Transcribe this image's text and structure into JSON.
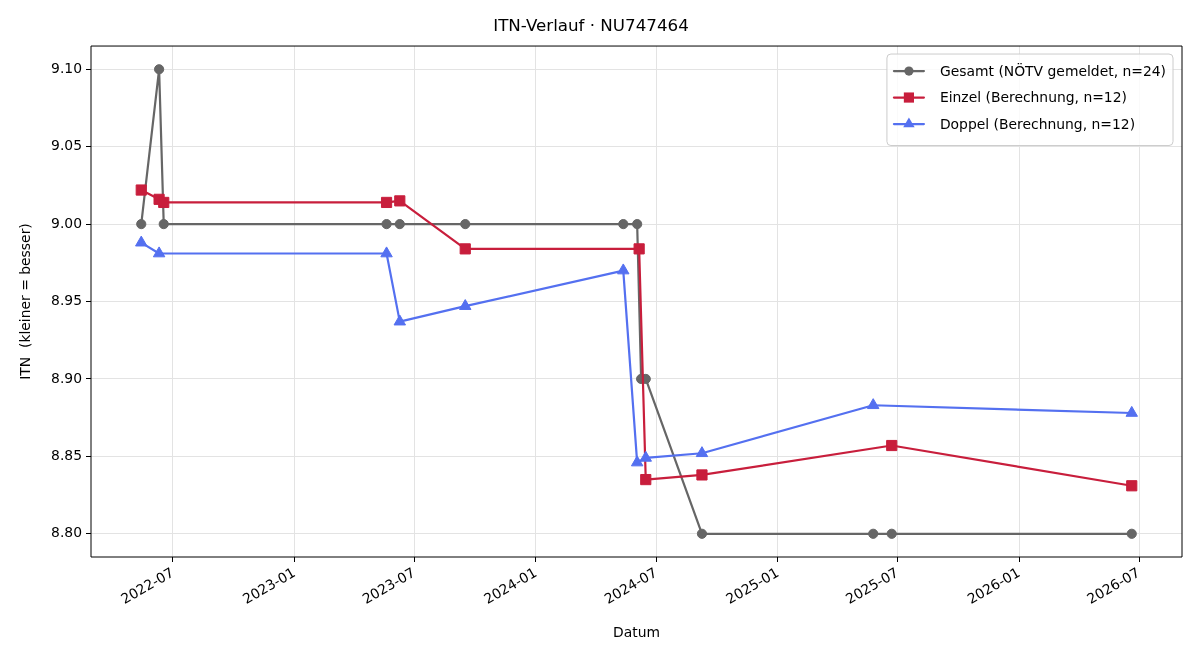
{
  "chart_data": {
    "type": "line",
    "title": "ITN-Verlauf · NU747464",
    "xlabel": "Datum",
    "ylabel": "ITN  (kleiner = besser)",
    "xlim": [
      "2022-02-27",
      "2026-09-04"
    ],
    "xticks": [
      "2022-07",
      "2023-01",
      "2023-07",
      "2024-01",
      "2024-07",
      "2025-01",
      "2025-07",
      "2026-01",
      "2026-07"
    ],
    "ylim": [
      8.785,
      9.115
    ],
    "yticks": [
      {
        "value": 8.8,
        "label": "8.80"
      },
      {
        "value": 8.85,
        "label": "8.85"
      },
      {
        "value": 8.9,
        "label": "8.90"
      },
      {
        "value": 8.95,
        "label": "8.95"
      },
      {
        "value": 9.0,
        "label": "9.00"
      },
      {
        "value": 9.05,
        "label": "9.05"
      },
      {
        "value": 9.1,
        "label": "9.10"
      }
    ],
    "grid": true,
    "legend": "top right",
    "series": [
      {
        "name": "Gesamt (NÖTV gemeldet, n=24)",
        "color": "#666666",
        "marker": "circle",
        "x": [
          "2022-05-14",
          "2022-06-10",
          "2022-06-17",
          "2023-05-20",
          "2023-06-09",
          "2023-09-16",
          "2024-05-12",
          "2024-06-02",
          "2024-06-08",
          "2024-06-15",
          "2024-09-08",
          "2025-05-25",
          "2025-06-22",
          "2026-06-20"
        ],
        "values": [
          9.0,
          9.1,
          9.0,
          9.0,
          9.0,
          9.0,
          9.0,
          9.0,
          8.9,
          8.9,
          8.8,
          8.8,
          8.8,
          8.8
        ]
      },
      {
        "name": "Einzel (Berechnung, n=12)",
        "color": "#c81e3c",
        "marker": "square",
        "x": [
          "2022-05-14",
          "2022-06-10",
          "2022-06-17",
          "2023-05-20",
          "2023-06-09",
          "2023-09-16",
          "2024-06-05",
          "2024-06-15",
          "2024-09-08",
          "2025-06-22",
          "2026-06-20"
        ],
        "values": [
          9.022,
          9.016,
          9.014,
          9.014,
          9.015,
          8.984,
          8.984,
          8.835,
          8.838,
          8.857,
          8.831
        ]
      },
      {
        "name": "Doppel (Berechnung, n=12)",
        "color": "#5470f0",
        "marker": "triangle",
        "x": [
          "2022-05-14",
          "2022-06-10",
          "2023-05-20",
          "2023-06-09",
          "2023-09-16",
          "2024-05-12",
          "2024-06-02",
          "2024-06-15",
          "2024-09-08",
          "2025-05-25",
          "2026-06-20"
        ],
        "values": [
          8.988,
          8.981,
          8.981,
          8.937,
          8.947,
          8.97,
          8.846,
          8.849,
          8.852,
          8.883,
          8.878
        ]
      }
    ]
  }
}
